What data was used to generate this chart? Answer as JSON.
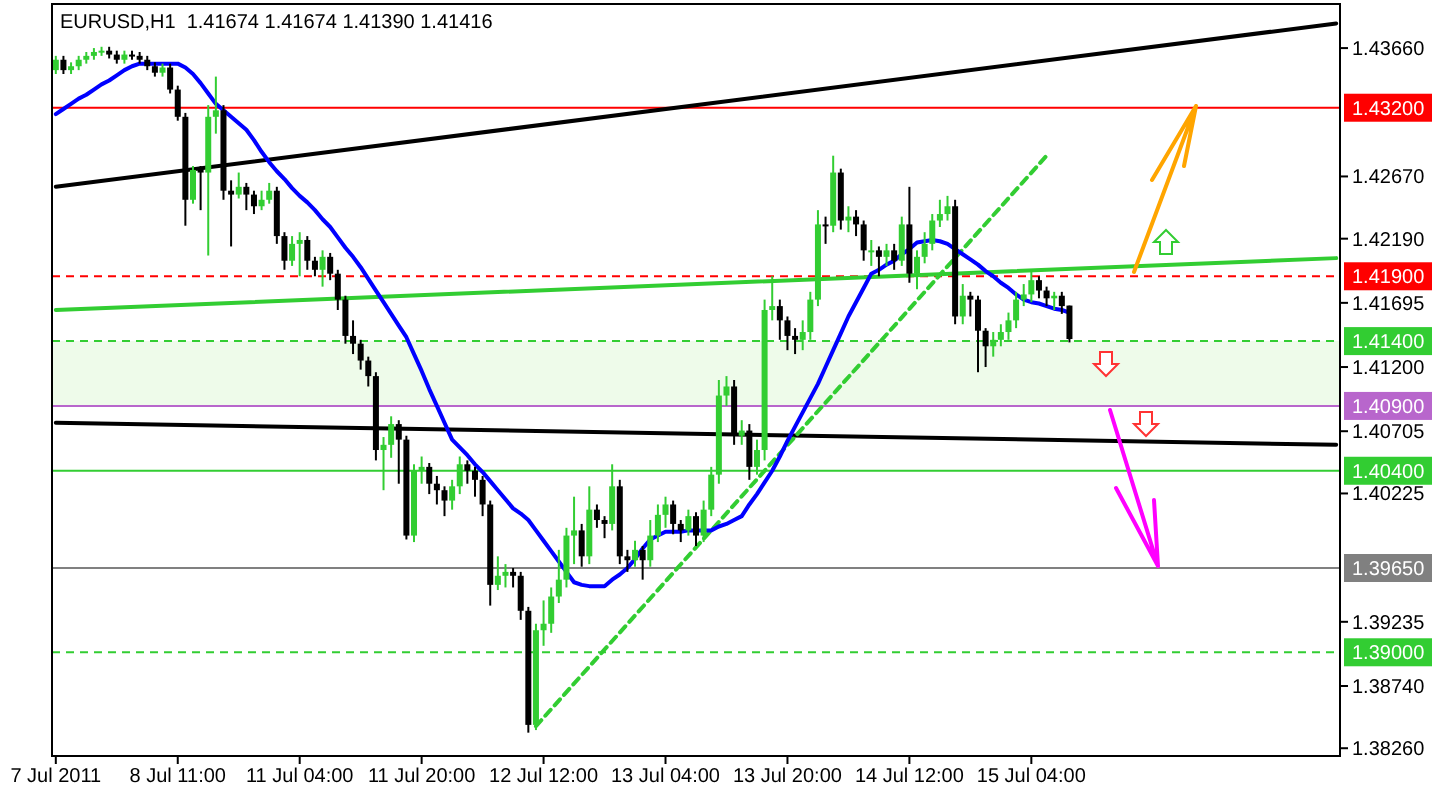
{
  "chart_data": {
    "type": "candlestick",
    "title": "EURUSD,H1  1.41674 1.41674 1.41390 1.41416",
    "categories": [
      "7 Jul 2011",
      null,
      null,
      null,
      null,
      null,
      null,
      null,
      null,
      null,
      null,
      null,
      null,
      null,
      null,
      null,
      "8 Jul 11:00",
      null,
      null,
      null,
      null,
      null,
      null,
      null,
      null,
      null,
      null,
      null,
      null,
      null,
      null,
      null,
      "11 Jul 04:00",
      null,
      null,
      null,
      null,
      null,
      null,
      null,
      null,
      null,
      null,
      null,
      null,
      null,
      null,
      null,
      "11 Jul 20:00",
      null,
      null,
      null,
      null,
      null,
      null,
      null,
      null,
      null,
      null,
      null,
      null,
      null,
      null,
      null,
      "12 Jul 12:00",
      null,
      null,
      null,
      null,
      null,
      null,
      null,
      null,
      null,
      null,
      null,
      null,
      null,
      null,
      null,
      "13 Jul 04:00",
      null,
      null,
      null,
      null,
      null,
      null,
      null,
      null,
      null,
      null,
      null,
      null,
      null,
      null,
      null,
      "13 Jul 20:00",
      null,
      null,
      null,
      null,
      null,
      null,
      null,
      null,
      null,
      null,
      null,
      null,
      null,
      null,
      null,
      "14 Jul 12:00",
      null,
      null,
      null,
      null,
      null,
      null,
      null,
      null,
      null,
      null,
      null,
      null,
      null,
      null,
      null,
      "15 Jul 04:00",
      null,
      null,
      null,
      null,
      null,
      null,
      null,
      null,
      null,
      null,
      null,
      null,
      null,
      null,
      null,
      null,
      null,
      null,
      null,
      null,
      null,
      null,
      null,
      null,
      null,
      null,
      null,
      null,
      null,
      null,
      null,
      null,
      null,
      null,
      null,
      null,
      null,
      null,
      null,
      null
    ],
    "ohlc": [
      [
        1.4349,
        1.436,
        1.4346,
        1.4357
      ],
      [
        1.4357,
        1.436,
        1.4346,
        1.4349
      ],
      [
        1.4349,
        1.4355,
        1.4346,
        1.4352
      ],
      [
        1.4352,
        1.436,
        1.4349,
        1.4357
      ],
      [
        1.4357,
        1.4363,
        1.4354,
        1.436
      ],
      [
        1.436,
        1.4366,
        1.4357,
        1.4363
      ],
      [
        1.4363,
        1.4367,
        1.436,
        1.4364
      ],
      [
        1.4364,
        1.4367,
        1.4358,
        1.4361
      ],
      [
        1.4361,
        1.4364,
        1.4354,
        1.4357
      ],
      [
        1.4357,
        1.4364,
        1.4354,
        1.4361
      ],
      [
        1.4361,
        1.4364,
        1.4357,
        1.436
      ],
      [
        1.436,
        1.4363,
        1.4354,
        1.4357
      ],
      [
        1.4357,
        1.436,
        1.4349,
        1.4352
      ],
      [
        1.4352,
        1.4355,
        1.4344,
        1.4347
      ],
      [
        1.4347,
        1.4354,
        1.4344,
        1.4351
      ],
      [
        1.4351,
        1.4354,
        1.4331,
        1.4334
      ],
      [
        1.4334,
        1.4337,
        1.431,
        1.4313
      ],
      [
        1.4313,
        1.4316,
        1.4229,
        1.4249
      ],
      [
        1.4249,
        1.4275,
        1.4246,
        1.4272
      ],
      [
        1.4272,
        1.4275,
        1.4241,
        1.427
      ],
      [
        1.427,
        1.4322,
        1.4206,
        1.4313
      ],
      [
        1.4313,
        1.4344,
        1.43,
        1.4318
      ],
      [
        1.4318,
        1.4322,
        1.4249,
        1.4256
      ],
      [
        1.4256,
        1.4264,
        1.4213,
        1.4253
      ],
      [
        1.4253,
        1.427,
        1.425,
        1.4259
      ],
      [
        1.4259,
        1.4262,
        1.4241,
        1.4253
      ],
      [
        1.4253,
        1.4256,
        1.4238,
        1.4244
      ],
      [
        1.4244,
        1.4256,
        1.4241,
        1.4249
      ],
      [
        1.4249,
        1.4262,
        1.4246,
        1.4256
      ],
      [
        1.4256,
        1.4259,
        1.4215,
        1.4221
      ],
      [
        1.4221,
        1.4224,
        1.4195,
        1.4202
      ],
      [
        1.4202,
        1.4221,
        1.4198,
        1.4215
      ],
      [
        1.4215,
        1.4224,
        1.419,
        1.4218
      ],
      [
        1.4218,
        1.4221,
        1.4195,
        1.4202
      ],
      [
        1.4202,
        1.4205,
        1.419,
        1.4195
      ],
      [
        1.4195,
        1.421,
        1.4182,
        1.4205
      ],
      [
        1.4205,
        1.4208,
        1.4187,
        1.4192
      ],
      [
        1.4192,
        1.4195,
        1.4164,
        1.4172
      ],
      [
        1.4172,
        1.4175,
        1.4138,
        1.4144
      ],
      [
        1.4144,
        1.4156,
        1.413,
        1.4138
      ],
      [
        1.4138,
        1.4141,
        1.4118,
        1.4125
      ],
      [
        1.4125,
        1.4128,
        1.4105,
        1.4113
      ],
      [
        1.4113,
        1.4116,
        1.4048,
        1.4056
      ],
      [
        1.4056,
        1.4066,
        1.4025,
        1.406
      ],
      [
        1.406,
        1.4082,
        1.405,
        1.4076
      ],
      [
        1.4076,
        1.4079,
        1.403,
        1.4064
      ],
      [
        1.4064,
        1.4067,
        1.3987,
        1.399
      ],
      [
        1.399,
        1.4045,
        1.3985,
        1.404
      ],
      [
        1.404,
        1.4051,
        1.403,
        1.4043
      ],
      [
        1.4043,
        1.4046,
        1.4022,
        1.403
      ],
      [
        1.403,
        1.4036,
        1.4014,
        1.4025
      ],
      [
        1.4025,
        1.4028,
        1.4005,
        1.4017
      ],
      [
        1.4017,
        1.4033,
        1.401,
        1.4028
      ],
      [
        1.4028,
        1.4051,
        1.4022,
        1.4045
      ],
      [
        1.4045,
        1.4048,
        1.403,
        1.404
      ],
      [
        1.404,
        1.4043,
        1.402,
        1.4033
      ],
      [
        1.4033,
        1.4036,
        1.4005,
        1.4014
      ],
      [
        1.4014,
        1.4017,
        1.3936,
        1.3952
      ],
      [
        1.3952,
        1.3974,
        1.3948,
        1.3959
      ],
      [
        1.3959,
        1.3968,
        1.395,
        1.3962
      ],
      [
        1.3962,
        1.3965,
        1.395,
        1.3959
      ],
      [
        1.3959,
        1.3962,
        1.3925,
        1.3932
      ],
      [
        1.3932,
        1.3935,
        1.3838,
        1.3844
      ],
      [
        1.3844,
        1.3922,
        1.384,
        1.3917
      ],
      [
        1.3917,
        1.394,
        1.3905,
        1.3922
      ],
      [
        1.3922,
        1.395,
        1.3915,
        1.3943
      ],
      [
        1.3943,
        1.3979,
        1.3938,
        1.3956
      ],
      [
        1.3956,
        1.3996,
        1.395,
        1.399
      ],
      [
        1.399,
        1.402,
        1.3968,
        1.3994
      ],
      [
        1.3994,
        1.3999,
        1.3966,
        1.3974
      ],
      [
        1.3974,
        1.4028,
        1.3968,
        1.401
      ],
      [
        1.401,
        1.4014,
        1.3996,
        1.4002
      ],
      [
        1.4002,
        1.4005,
        1.3988,
        1.3999
      ],
      [
        1.3999,
        1.4045,
        1.3994,
        1.4028
      ],
      [
        1.4028,
        1.4033,
        1.3968,
        1.3974
      ],
      [
        1.3974,
        1.3979,
        1.3962,
        1.3971
      ],
      [
        1.3971,
        1.3986,
        1.3966,
        1.3979
      ],
      [
        1.3979,
        1.3982,
        1.3956,
        1.3971
      ],
      [
        1.3971,
        1.4002,
        1.3966,
        1.399
      ],
      [
        1.399,
        1.4014,
        1.3985,
        1.4006
      ],
      [
        1.4006,
        1.402,
        1.3996,
        1.4014
      ],
      [
        1.4014,
        1.4017,
        1.3991,
        1.3999
      ],
      [
        1.3999,
        1.4002,
        1.3985,
        1.3994
      ],
      [
        1.3994,
        1.401,
        1.399,
        1.4005
      ],
      [
        1.4005,
        1.4008,
        1.3982,
        1.399
      ],
      [
        1.399,
        1.4017,
        1.3985,
        1.401
      ],
      [
        1.401,
        1.4043,
        1.4005,
        1.4037
      ],
      [
        1.4037,
        1.411,
        1.403,
        1.4098
      ],
      [
        1.4098,
        1.4113,
        1.409,
        1.4105
      ],
      [
        1.4105,
        1.411,
        1.406,
        1.4067
      ],
      [
        1.4067,
        1.4079,
        1.406,
        1.4071
      ],
      [
        1.4071,
        1.4076,
        1.4033,
        1.4043
      ],
      [
        1.4043,
        1.4064,
        1.4037,
        1.4056
      ],
      [
        1.4056,
        1.4172,
        1.4048,
        1.4164
      ],
      [
        1.4164,
        1.419,
        1.4156,
        1.4167
      ],
      [
        1.4167,
        1.4172,
        1.4141,
        1.4156
      ],
      [
        1.4156,
        1.4159,
        1.4133,
        1.4144
      ],
      [
        1.4144,
        1.415,
        1.413,
        1.4141
      ],
      [
        1.4141,
        1.4156,
        1.4133,
        1.4147
      ],
      [
        1.4147,
        1.4178,
        1.4141,
        1.4172
      ],
      [
        1.4172,
        1.4241,
        1.4167,
        1.423
      ],
      [
        1.423,
        1.4236,
        1.4215,
        1.4229
      ],
      [
        1.4229,
        1.4283,
        1.4224,
        1.427
      ],
      [
        1.427,
        1.4273,
        1.4226,
        1.4233
      ],
      [
        1.4233,
        1.4244,
        1.4224,
        1.4236
      ],
      [
        1.4236,
        1.4241,
        1.4221,
        1.423
      ],
      [
        1.423,
        1.4233,
        1.4202,
        1.421
      ],
      [
        1.421,
        1.4218,
        1.4198,
        1.421
      ],
      [
        1.421,
        1.4213,
        1.419,
        1.4205
      ],
      [
        1.4205,
        1.4215,
        1.4198,
        1.421
      ],
      [
        1.421,
        1.4215,
        1.4195,
        1.4202
      ],
      [
        1.4202,
        1.4236,
        1.4198,
        1.423
      ],
      [
        1.423,
        1.4259,
        1.4185,
        1.4192
      ],
      [
        1.4192,
        1.421,
        1.418,
        1.4205
      ],
      [
        1.4205,
        1.4224,
        1.42,
        1.4215
      ],
      [
        1.4215,
        1.4238,
        1.421,
        1.4233
      ],
      [
        1.4233,
        1.4249,
        1.4228,
        1.4238
      ],
      [
        1.4238,
        1.4252,
        1.4233,
        1.4244
      ],
      [
        1.4244,
        1.4249,
        1.4153,
        1.4159
      ],
      [
        1.4159,
        1.4184,
        1.4153,
        1.4175
      ],
      [
        1.4175,
        1.4178,
        1.4159,
        1.4172
      ],
      [
        1.4172,
        1.4175,
        1.4116,
        1.4148
      ],
      [
        1.4148,
        1.415,
        1.412,
        1.4136
      ],
      [
        1.4136,
        1.4147,
        1.4128,
        1.4141
      ],
      [
        1.4141,
        1.4153,
        1.4136,
        1.4147
      ],
      [
        1.4147,
        1.4162,
        1.4141,
        1.4156
      ],
      [
        1.4156,
        1.4178,
        1.415,
        1.4172
      ],
      [
        1.4172,
        1.4184,
        1.4167,
        1.4176
      ],
      [
        1.4176,
        1.4195,
        1.417,
        1.4187
      ],
      [
        1.4187,
        1.419,
        1.4173,
        1.4179
      ],
      [
        1.4179,
        1.4182,
        1.4167,
        1.4173
      ],
      [
        1.4173,
        1.4178,
        1.4164,
        1.4175
      ],
      [
        1.4175,
        1.4178,
        1.4161,
        1.4167
      ],
      [
        1.41674,
        1.41674,
        1.4139,
        1.41416
      ],
      null,
      null,
      null,
      null,
      null,
      null,
      null,
      null,
      null,
      null,
      null,
      null,
      null,
      null,
      null,
      null,
      null,
      null,
      null,
      null,
      null,
      null,
      null,
      null,
      null,
      null,
      null,
      null,
      null,
      null,
      null,
      null,
      null,
      null,
      null
    ],
    "colors": [
      "#32cd32",
      "#000000",
      "#32cd32",
      "#32cd32",
      "#32cd32",
      "#32cd32",
      "#32cd32",
      "#000000",
      "#000000",
      "#32cd32",
      "#000000",
      "#000000",
      "#000000",
      "#000000",
      "#32cd32",
      "#000000",
      "#000000",
      "#000000",
      "#32cd32",
      "#000000",
      "#32cd32",
      "#32cd32",
      "#000000",
      "#000000",
      "#32cd32",
      "#000000",
      "#000000",
      "#32cd32",
      "#32cd32",
      "#000000",
      "#000000",
      "#32cd32",
      "#32cd32",
      "#000000",
      "#000000",
      "#32cd32",
      "#000000",
      "#000000",
      "#000000",
      "#000000",
      "#000000",
      "#000000",
      "#000000",
      "#32cd32",
      "#32cd32",
      "#000000",
      "#000000",
      "#32cd32",
      "#32cd32",
      "#000000",
      "#000000",
      "#000000",
      "#32cd32",
      "#32cd32",
      "#000000",
      "#000000",
      "#000000",
      "#000000",
      "#32cd32",
      "#32cd32",
      "#000000",
      "#000000",
      "#000000",
      "#32cd32",
      "#32cd32",
      "#32cd32",
      "#32cd32",
      "#32cd32",
      "#32cd32",
      "#000000",
      "#32cd32",
      "#000000",
      "#000000",
      "#32cd32",
      "#000000",
      "#000000",
      "#32cd32",
      "#000000",
      "#32cd32",
      "#32cd32",
      "#32cd32",
      "#000000",
      "#000000",
      "#32cd32",
      "#000000",
      "#32cd32",
      "#32cd32",
      "#32cd32",
      "#32cd32",
      "#000000",
      "#32cd32",
      "#000000",
      "#32cd32",
      "#32cd32",
      "#32cd32",
      "#000000",
      "#000000",
      "#000000",
      "#32cd32",
      "#32cd32",
      "#32cd32",
      "#000000",
      "#32cd32",
      "#000000",
      "#32cd32",
      "#000000",
      "#000000",
      "#32cd32",
      "#000000",
      "#32cd32",
      "#000000",
      "#32cd32",
      "#000000",
      "#32cd32",
      "#32cd32",
      "#32cd32",
      "#32cd32",
      "#32cd32",
      "#000000",
      "#32cd32",
      "#000000",
      "#000000",
      "#000000",
      "#32cd32",
      "#32cd32",
      "#32cd32",
      "#32cd32",
      "#32cd32",
      "#32cd32",
      "#000000",
      "#000000",
      "#32cd32",
      "#000000",
      "#000000",
      null,
      null,
      null,
      null,
      null,
      null,
      null,
      null,
      null,
      null,
      null,
      null,
      null,
      null,
      null,
      null,
      null,
      null,
      null,
      null,
      null,
      null,
      null,
      null,
      null,
      null,
      null,
      null,
      null,
      null,
      null,
      null,
      null,
      null,
      null
    ],
    "series": [
      {
        "type": "line",
        "color": "#000000",
        "values": [
          1.4259,
          null,
          null,
          null,
          null,
          null,
          null,
          null,
          null,
          null,
          null,
          null,
          null,
          null,
          null,
          null,
          null,
          null,
          null,
          null,
          null,
          null,
          null,
          null,
          null,
          null,
          null,
          null,
          null,
          null,
          null,
          null,
          null,
          null,
          null,
          null,
          null,
          null,
          null,
          null,
          null,
          null,
          null,
          null,
          null,
          null,
          null,
          null,
          null,
          null,
          null,
          null,
          null,
          null,
          null,
          null,
          null,
          null,
          null,
          null,
          null,
          null,
          null,
          null,
          null,
          null,
          null,
          null,
          null,
          null,
          null,
          null,
          null,
          null,
          null,
          null,
          null,
          null,
          null,
          null,
          null,
          null,
          null,
          null,
          null,
          null,
          null,
          null,
          null,
          null,
          null,
          null,
          null,
          null,
          null,
          null,
          null,
          null,
          null,
          null,
          null,
          null,
          null,
          null,
          null,
          null,
          null,
          null,
          null,
          null,
          null,
          null,
          null,
          null,
          null,
          null,
          null,
          null,
          null,
          null,
          null,
          null,
          null,
          null,
          null,
          null,
          null,
          null,
          null,
          null,
          null,
          null,
          null,
          null,
          null,
          null,
          null,
          null,
          null,
          null,
          null,
          null,
          null,
          null,
          null,
          null,
          null,
          null,
          null,
          null,
          null,
          null,
          null,
          null,
          null,
          null,
          null,
          null,
          null,
          null,
          null,
          null,
          null,
          null,
          null,
          null,
          null,
          null,
          1.4385
        ]
      },
      {
        "type": "line",
        "color": "#32cd32",
        "values": [
          1.4164,
          null,
          null,
          null,
          null,
          null,
          null,
          null,
          null,
          null,
          null,
          null,
          null,
          null,
          null,
          null,
          null,
          null,
          null,
          null,
          null,
          null,
          null,
          null,
          null,
          null,
          null,
          null,
          null,
          null,
          null,
          null,
          null,
          null,
          null,
          null,
          null,
          null,
          null,
          null,
          null,
          null,
          null,
          null,
          null,
          null,
          null,
          null,
          null,
          null,
          null,
          null,
          null,
          null,
          null,
          null,
          null,
          null,
          null,
          null,
          null,
          null,
          null,
          null,
          null,
          null,
          null,
          null,
          null,
          null,
          null,
          null,
          null,
          null,
          null,
          null,
          null,
          null,
          null,
          null,
          null,
          null,
          null,
          null,
          null,
          null,
          null,
          null,
          null,
          null,
          null,
          null,
          null,
          null,
          null,
          null,
          null,
          null,
          null,
          null,
          null,
          null,
          null,
          null,
          null,
          null,
          null,
          null,
          null,
          null,
          null,
          null,
          null,
          null,
          null,
          null,
          null,
          null,
          null,
          null,
          null,
          null,
          null,
          null,
          null,
          null,
          null,
          null,
          null,
          null,
          null,
          null,
          null,
          null,
          null,
          null,
          null,
          null,
          null,
          null,
          null,
          null,
          null,
          null,
          null,
          null,
          null,
          null,
          null,
          null,
          null,
          null,
          null,
          null,
          null,
          null,
          null,
          null,
          null,
          null,
          null,
          null,
          null,
          null,
          null,
          null,
          null,
          null,
          1.4204
        ]
      },
      {
        "type": "line",
        "color": "#000000",
        "values": [
          1.4077,
          null,
          null,
          null,
          null,
          null,
          null,
          null,
          null,
          null,
          null,
          null,
          null,
          null,
          null,
          null,
          null,
          null,
          null,
          null,
          null,
          null,
          null,
          null,
          null,
          null,
          null,
          null,
          null,
          null,
          null,
          null,
          null,
          null,
          null,
          null,
          null,
          null,
          null,
          null,
          null,
          null,
          null,
          null,
          null,
          null,
          null,
          null,
          null,
          null,
          null,
          null,
          null,
          null,
          null,
          null,
          null,
          null,
          null,
          null,
          null,
          null,
          null,
          null,
          null,
          null,
          null,
          null,
          null,
          null,
          null,
          null,
          null,
          null,
          null,
          null,
          null,
          null,
          null,
          null,
          null,
          null,
          null,
          null,
          null,
          null,
          null,
          null,
          null,
          null,
          null,
          null,
          null,
          null,
          null,
          null,
          null,
          null,
          null,
          null,
          null,
          null,
          null,
          null,
          null,
          null,
          null,
          null,
          null,
          null,
          null,
          null,
          null,
          null,
          null,
          null,
          null,
          null,
          null,
          null,
          null,
          null,
          null,
          null,
          null,
          null,
          null,
          null,
          null,
          null,
          null,
          null,
          null,
          null,
          null,
          null,
          null,
          null,
          null,
          null,
          null,
          null,
          null,
          null,
          null,
          null,
          null,
          null,
          null,
          null,
          null,
          null,
          null,
          null,
          null,
          null,
          null,
          null,
          null,
          null,
          null,
          null,
          null,
          null,
          null,
          null,
          null,
          null,
          1.406
        ]
      },
      {
        "type": "line",
        "color": "#32cd32",
        "line_style": "dashed",
        "values": [
          null,
          null,
          null,
          null,
          null,
          null,
          null,
          null,
          null,
          null,
          null,
          null,
          null,
          null,
          null,
          null,
          null,
          null,
          null,
          null,
          null,
          null,
          null,
          null,
          null,
          null,
          null,
          null,
          null,
          null,
          null,
          null,
          null,
          null,
          null,
          null,
          null,
          null,
          null,
          null,
          null,
          null,
          null,
          null,
          null,
          null,
          null,
          null,
          null,
          null,
          null,
          null,
          null,
          null,
          null,
          null,
          null,
          null,
          null,
          null,
          null,
          null,
          null,
          1.3843,
          null,
          null,
          null,
          null,
          null,
          null,
          null,
          null,
          null,
          null,
          null,
          null,
          null,
          null,
          null,
          null,
          null,
          null,
          null,
          null,
          null,
          null,
          null,
          null,
          null,
          null,
          null,
          null,
          null,
          null,
          null,
          null,
          null,
          null,
          null,
          null,
          null,
          null,
          null,
          null,
          null,
          null,
          null,
          null,
          null,
          null,
          null,
          null,
          null,
          null,
          null,
          null,
          null,
          null,
          null,
          null,
          null,
          null,
          null,
          null,
          null,
          null,
          null,
          null,
          null,
          null,
          1.4283,
          null,
          null,
          null,
          null,
          null,
          null,
          null,
          null,
          null,
          null,
          null,
          null,
          null,
          null,
          null,
          null,
          null,
          null,
          null,
          null,
          null,
          null,
          null,
          null,
          null,
          null,
          null,
          null,
          null,
          null,
          null,
          null,
          null,
          null,
          null,
          null,
          null,
          null
        ]
      },
      {
        "type": "line",
        "color": "#0000ff",
        "values": [
          1.4315,
          1.4319,
          1.4323,
          1.4327,
          1.433,
          1.4334,
          1.4338,
          1.4341,
          1.4345,
          1.4349,
          1.4352,
          1.4354,
          1.4354,
          1.4354,
          1.4354,
          1.4354,
          1.4354,
          1.4351,
          1.4346,
          1.4339,
          1.4331,
          1.4323,
          1.4318,
          1.4313,
          1.4308,
          1.4303,
          1.4295,
          1.4286,
          1.4278,
          1.4271,
          1.4265,
          1.4258,
          1.4252,
          1.4247,
          1.4241,
          1.4234,
          1.4228,
          1.422,
          1.4212,
          1.4205,
          1.4197,
          1.4188,
          1.4179,
          1.417,
          1.4161,
          1.4152,
          1.4143,
          1.413,
          1.4117,
          1.4103,
          1.409,
          1.4077,
          1.4064,
          1.4058,
          1.4052,
          1.4045,
          1.4039,
          1.4032,
          1.4025,
          1.4018,
          1.4011,
          1.4007,
          1.4002,
          1.3994,
          1.3986,
          1.3978,
          1.397,
          1.3962,
          1.3954,
          1.3952,
          1.3951,
          1.3951,
          1.3951,
          1.3956,
          1.396,
          1.3965,
          1.3972,
          1.398,
          1.3987,
          1.399,
          1.3993,
          1.3993,
          1.3993,
          1.3994,
          1.3994,
          1.3994,
          1.3994,
          1.3997,
          1.3999,
          1.4002,
          1.4005,
          1.4014,
          1.4022,
          1.4031,
          1.404,
          1.4051,
          1.4063,
          1.4074,
          1.4085,
          1.4096,
          1.4107,
          1.412,
          1.4133,
          1.4146,
          1.4159,
          1.417,
          1.4181,
          1.4192,
          1.4195,
          1.4199,
          1.4202,
          1.4207,
          1.4211,
          1.4216,
          1.4217,
          1.4218,
          1.4217,
          1.4215,
          1.4211,
          1.4207,
          1.4203,
          1.4199,
          1.4194,
          1.419,
          1.4185,
          1.4181,
          1.4176,
          1.4172,
          1.417,
          1.4169,
          1.4167,
          1.4165,
          1.4164,
          1.4162,
          null,
          null,
          null,
          null,
          null,
          null,
          null,
          null,
          null,
          null,
          null,
          null,
          null,
          null,
          null,
          null,
          null,
          null,
          null,
          null,
          null,
          null,
          null,
          null,
          null,
          null,
          null,
          null,
          null,
          null,
          null,
          null,
          null,
          null,
          null
        ]
      }
    ],
    "ylim": [
      1.382,
      1.44
    ],
    "yticks": [
      {
        "value": 1.4366,
        "label": "1.43660"
      },
      {
        "value": 1.4267,
        "label": "1.42670"
      },
      {
        "value": 1.4219,
        "label": "1.42190"
      },
      {
        "value": 1.41695,
        "label": "1.41695"
      },
      {
        "value": 1.412,
        "label": "1.41200"
      },
      {
        "value": 1.40705,
        "label": "1.40705"
      },
      {
        "value": 1.40225,
        "label": "1.40225"
      },
      {
        "value": 1.39235,
        "label": "1.39235"
      },
      {
        "value": 1.3874,
        "label": "1.38740"
      },
      {
        "value": 1.3826,
        "label": "1.38260"
      }
    ],
    "ref_lines": [
      {
        "axis": "y",
        "value": 1.432,
        "label": "1.43200",
        "color": "#ff0000",
        "line_style": "solid"
      },
      {
        "axis": "y",
        "value": 1.419,
        "label": "1.41900",
        "color": "#ff0000",
        "line_style": "dashed"
      },
      {
        "axis": "y",
        "value": 1.414,
        "label": "1.41400",
        "color": "#32cd32",
        "line_style": "dashed"
      },
      {
        "axis": "y",
        "value": 1.409,
        "label": "1.40900",
        "color": "#b866cc",
        "line_style": "solid"
      },
      {
        "axis": "y",
        "value": 1.404,
        "label": "1.40400",
        "color": "#32cd32",
        "line_style": "solid"
      },
      {
        "axis": "y",
        "value": 1.3965,
        "label": "1.39650",
        "color": "#808080",
        "line_style": "solid"
      },
      {
        "axis": "y",
        "value": 1.39,
        "label": "1.39000",
        "color": "#32cd32",
        "line_style": "dashed"
      }
    ],
    "bands": [
      {
        "axis": "y",
        "from": 1.409,
        "to": 1.414,
        "color": "#eefbea"
      }
    ],
    "marker": "none"
  }
}
